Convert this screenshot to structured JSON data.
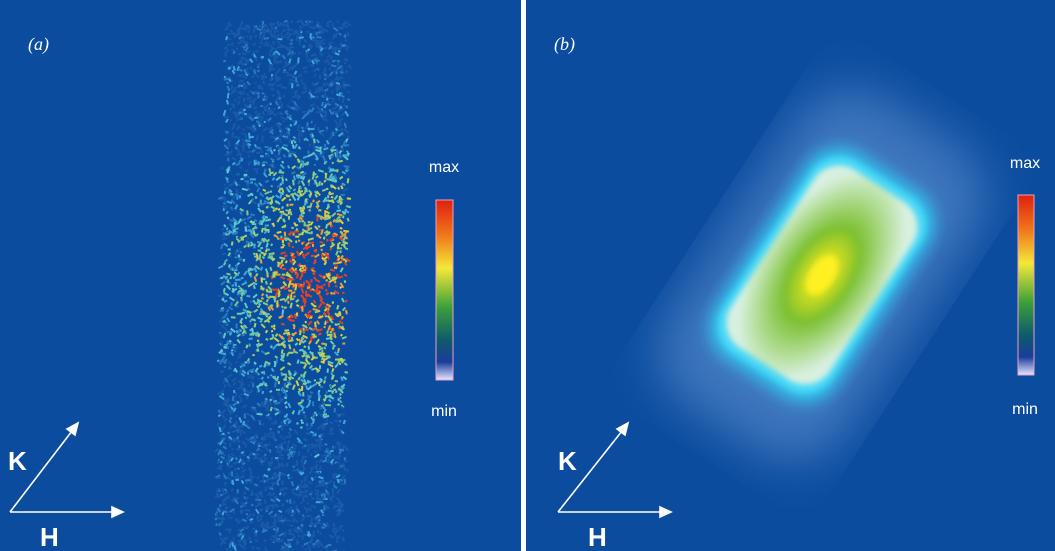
{
  "panels": [
    {
      "label": "(a)",
      "colorbar": {
        "max": "max",
        "min": "min"
      },
      "axes": {
        "k": "K",
        "h": "H"
      }
    },
    {
      "label": "(b)",
      "colorbar": {
        "max": "max",
        "min": "min"
      },
      "axes": {
        "k": "K",
        "h": "H"
      }
    }
  ]
}
